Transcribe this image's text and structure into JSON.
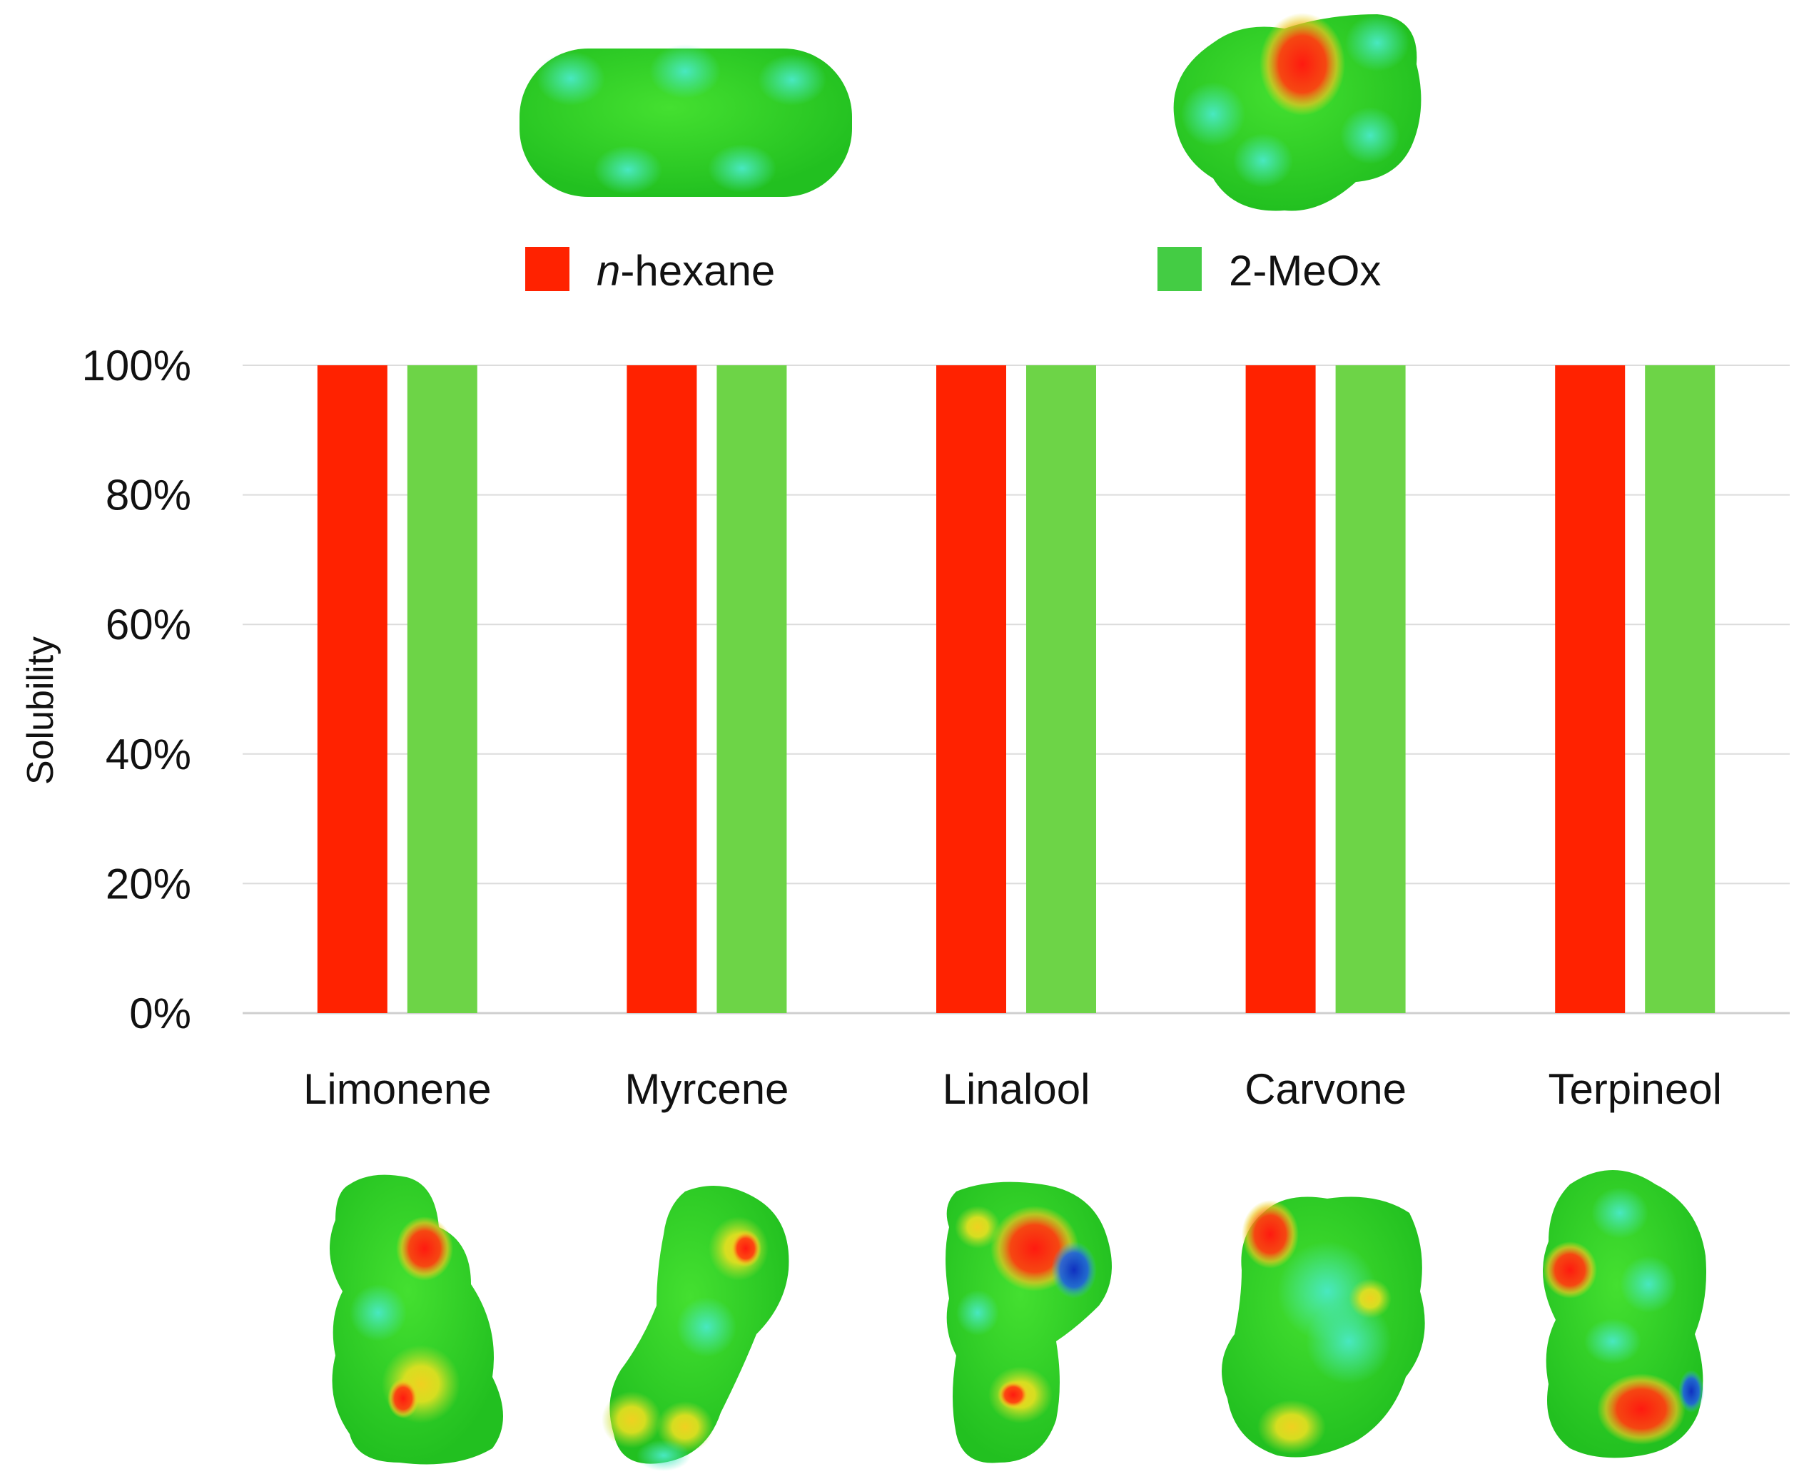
{
  "chart_data": {
    "type": "bar",
    "title": "",
    "xlabel": "",
    "ylabel": "Solubility",
    "ylim": [
      0,
      100
    ],
    "yticks": [
      "0%",
      "20%",
      "40%",
      "60%",
      "80%",
      "100%"
    ],
    "ytick_values": [
      0,
      20,
      40,
      60,
      80,
      100
    ],
    "grid": true,
    "legend_position": "top",
    "categories": [
      "Limonene",
      "Myrcene",
      "Linalool",
      "Carvone",
      "Terpineol"
    ],
    "series": [
      {
        "name": "n-hexane",
        "name_prefix": "n",
        "name_suffix": "-hexane",
        "color": "#ff2200",
        "values": [
          100,
          100,
          100,
          100,
          100
        ]
      },
      {
        "name": "2-MeOx",
        "color": "#6dd447",
        "values": [
          100,
          100,
          100,
          100,
          100
        ]
      }
    ],
    "legend_swatch_colors": [
      "#ff2200",
      "#44cc44"
    ],
    "molecule_surface_colors": {
      "base": "#2fd626",
      "cyan": "#3ee6b0",
      "red": "#ff2a10",
      "yellow": "#e8e020",
      "blue": "#1b4fd8"
    }
  }
}
